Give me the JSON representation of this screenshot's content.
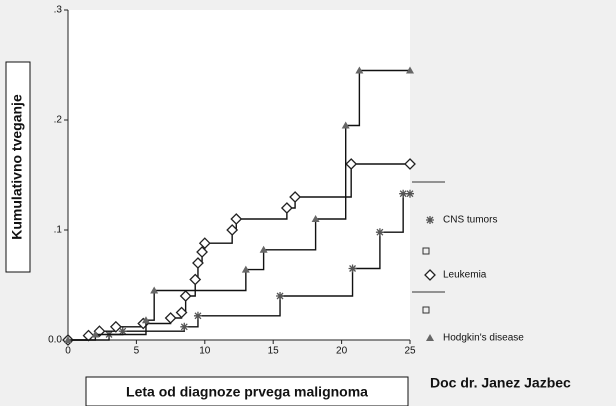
{
  "chart_data": {
    "type": "step",
    "y_label": "Kumulativno tveganje",
    "x_label": "Leta od diagnoze prvega malignoma",
    "author": "Doc dr. Janez Jazbec",
    "xlim": [
      0,
      25
    ],
    "ylim": [
      0,
      0.3
    ],
    "xticks": [
      0,
      5,
      10,
      15,
      20,
      25
    ],
    "yticks": [
      {
        "value": 0,
        "label": "0.0"
      },
      {
        "value": 0.1,
        "label": ".1"
      },
      {
        "value": 0.2,
        "label": ".2"
      },
      {
        "value": 0.3,
        "label": ".3"
      }
    ],
    "series": [
      {
        "name": "CNS tumors",
        "marker": "asterisk",
        "color": "#555555",
        "x": [
          0,
          3,
          4,
          8.5,
          9.5,
          15.5,
          20.8,
          22.8,
          24.5,
          25
        ],
        "values": [
          0,
          0.005,
          0.008,
          0.012,
          0.022,
          0.04,
          0.065,
          0.098,
          0.133,
          0.133
        ]
      },
      {
        "name": "Leukemia",
        "marker": "diamond",
        "color": "#222222",
        "x": [
          0,
          1.5,
          2.3,
          3.5,
          5.5,
          7.5,
          8.3,
          8.6,
          9.3,
          9.5,
          9.8,
          10,
          12,
          12.3,
          16,
          16.6,
          20.7,
          25
        ],
        "values": [
          0,
          0.004,
          0.008,
          0.012,
          0.015,
          0.02,
          0.025,
          0.04,
          0.055,
          0.07,
          0.08,
          0.088,
          0.1,
          0.11,
          0.12,
          0.13,
          0.16,
          0.16
        ]
      },
      {
        "name": "Hodgkin's disease",
        "marker": "triangle",
        "color": "#666666",
        "x": [
          0,
          2,
          5.7,
          6.3,
          13,
          14.3,
          18.1,
          20.3,
          21.3,
          25
        ],
        "values": [
          0,
          0.005,
          0.018,
          0.045,
          0.064,
          0.082,
          0.11,
          0.195,
          0.245,
          0.245
        ]
      }
    ]
  }
}
